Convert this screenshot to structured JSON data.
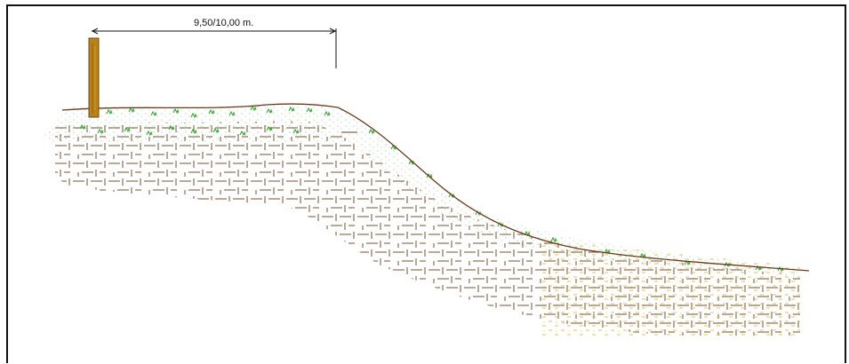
{
  "dimension": {
    "label": "9,50/10,00 m."
  },
  "colors": {
    "frame": "#111111",
    "post": "#b7831a",
    "post_outline": "#7a4a0a",
    "ground_line": "#6b3a1a",
    "brick": "#7a5230",
    "sand": "#e2c45a",
    "grass": "#2ea52e",
    "dim_line": "#111111"
  },
  "icons": {
    "post": "wooden-post",
    "grass": "grass-tuft",
    "pattern": "brick-hatch"
  }
}
